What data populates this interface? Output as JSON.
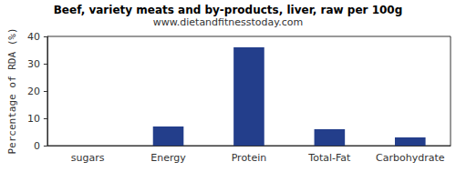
{
  "chart_data": {
    "type": "bar",
    "title": "Beef, variety meats and by-products, liver, raw per 100g",
    "subtitle": "www.dietandfitnesstoday.com",
    "y_label": "Percentage of RDA (%)",
    "categories": [
      "sugars",
      "Energy",
      "Protein",
      "Total-Fat",
      "Carbohydrate"
    ],
    "values": [
      0,
      7,
      36,
      6,
      3
    ],
    "color": "#233e8b",
    "ylim": [
      0,
      40
    ],
    "yticks": [
      0,
      10,
      20,
      30,
      40
    ],
    "grid": false
  }
}
